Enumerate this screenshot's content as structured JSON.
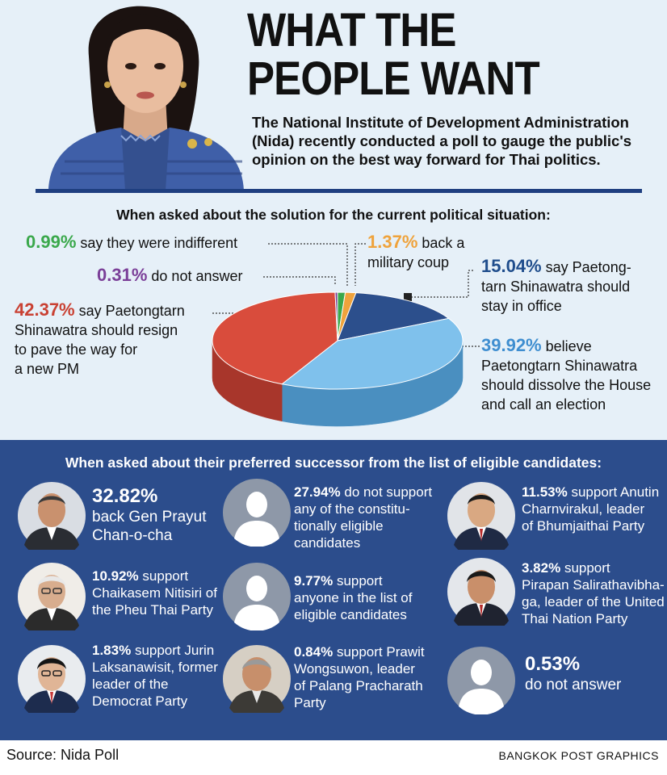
{
  "header": {
    "title_line1": "WHAT THE",
    "title_line2": "PEOPLE WANT",
    "intro": "The National Institute of Development Administration (Nida) recently conducted a poll to gauge the public's opinion on the best way forward for Thai politics."
  },
  "question1": "When asked about the solution for the current political situation:",
  "chart_data": {
    "type": "pie",
    "title": "When asked about the solution for the current political situation:",
    "categories": [
      "say they were indifferent",
      "back a military coup",
      "say Paetongtarn Shinawatra should stay in office",
      "believe Paetongtarn Shinawatra should dissolve the House and call an election",
      "say Paetongtarn Shinawatra should resign to pave the way for a new PM",
      "do not answer"
    ],
    "values": [
      0.99,
      1.37,
      15.04,
      39.92,
      42.37,
      0.31
    ],
    "colors": [
      "#3aa84b",
      "#efa33c",
      "#2c4f8c",
      "#7fc1ec",
      "#d94c3c",
      "#7b3f98"
    ],
    "side_colors": [
      "#2a7d37",
      "#c27f22",
      "#1c3664",
      "#4a8fc0",
      "#a8362b",
      "#5a2c73"
    ]
  },
  "labels": {
    "indifferent": {
      "pct": "0.99%",
      "text": "say they were indifferent"
    },
    "no_answer": {
      "pct": "0.31%",
      "text": "do not answer"
    },
    "resign": {
      "pct": "42.37%",
      "line1": "say Paetongtarn",
      "line2": "Shinawatra should resign",
      "line3": "to pave the way for",
      "line4": "a new PM"
    },
    "coup": {
      "pct": "1.37%",
      "line1": "back a",
      "line2": "military coup"
    },
    "stay": {
      "pct": "15.04%",
      "line1": "say Paetong-",
      "line2": "tarn Shinawatra should",
      "line3": "stay in office"
    },
    "dissolve": {
      "pct": "39.92%",
      "line1": "believe",
      "line2": "Paetongtarn Shinawatra",
      "line3": "should dissolve the House",
      "line4": "and call an election"
    }
  },
  "question2": "When asked about their preferred successor from the list of eligible candidates:",
  "candidates": [
    {
      "pct": "32.82%",
      "line1": "back Gen Prayut",
      "line2": "Chan-o-cha"
    },
    {
      "pct": "27.94%",
      "line1": "do not support",
      "line2": "any of the constitu-",
      "line3": "tionally eligible",
      "line4": "candidates"
    },
    {
      "pct": "11.53%",
      "line1": "support Anutin",
      "line2": "Charnvirakul, leader",
      "line3": "of Bhumjaithai Party"
    },
    {
      "pct": "10.92%",
      "line1": "support",
      "line2": "Chaikasem Nitisiri of",
      "line3": "the Pheu Thai Party"
    },
    {
      "pct": "9.77%",
      "line1": "support",
      "line2": "anyone in the list of",
      "line3": "eligible candidates"
    },
    {
      "pct": "3.82%",
      "line1": "support",
      "line2": "Pirapan Salirathavibha-",
      "line3": "ga, leader of the United",
      "line4": "Thai Nation Party"
    },
    {
      "pct": "1.83%",
      "line1": "support Jurin",
      "line2": "Laksanawisit, former",
      "line3": "leader of the",
      "line4": "Democrat Party"
    },
    {
      "pct": "0.84%",
      "line1": "support Prawit",
      "line2": "Wongsuwon, leader",
      "line3": "of Palang Pracharath",
      "line4": "Party"
    },
    {
      "pct": "0.53%",
      "line1": "do not answer"
    }
  ],
  "footer": {
    "source": "Source: Nida Poll",
    "credit": "BANGKOK POST GRAPHICS"
  }
}
